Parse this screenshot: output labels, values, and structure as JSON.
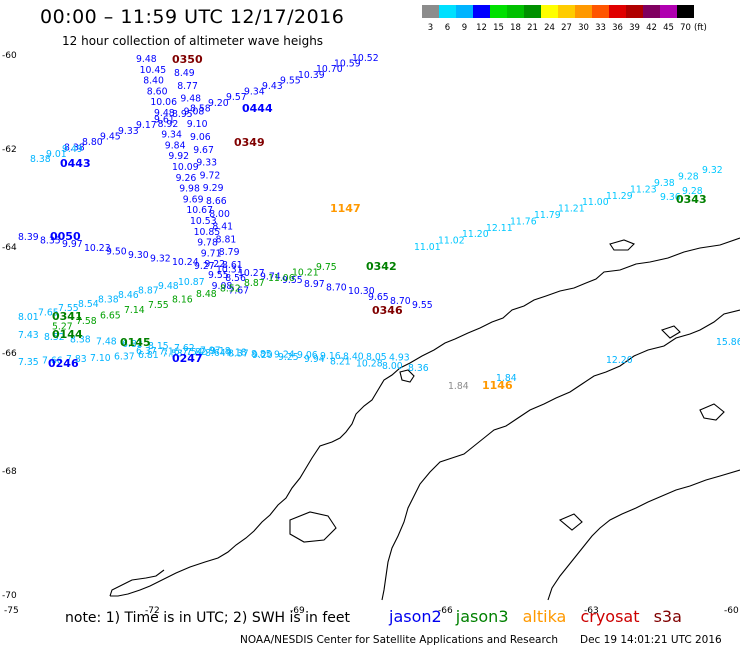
{
  "header": {
    "title": "00:00 – 11:59 UTC 12/17/2016",
    "subtitle": "12 hour collection of altimeter wave heighs"
  },
  "scale": {
    "labels": [
      "3",
      "6",
      "9",
      "12",
      "15",
      "18",
      "21",
      "24",
      "27",
      "30",
      "33",
      "36",
      "39",
      "42",
      "45",
      "70"
    ],
    "colors": [
      "#8c8c8c",
      "#00e0ff",
      "#00b4ff",
      "#0000ff",
      "#00e000",
      "#00c000",
      "#009000",
      "#ffff00",
      "#ffcc00",
      "#ff9900",
      "#ff5500",
      "#e00000",
      "#b00000",
      "#800060",
      "#b000b0",
      "#000000"
    ],
    "unit": "(ft)"
  },
  "axes": {
    "lat_labels": [
      "-60",
      "-62",
      "-64",
      "-66",
      "-68",
      "-70"
    ],
    "lon_labels": [
      "-75",
      "-72",
      "-69",
      "-66",
      "-63",
      "-60"
    ]
  },
  "satellites": {
    "jason2": {
      "label": "jason2",
      "color": "#0000ee"
    },
    "jason3": {
      "label": "jason3",
      "color": "#008000"
    },
    "altika": {
      "label": "altika",
      "color": "#ff9900"
    },
    "cryosat": {
      "label": "cryosat",
      "color": "#cc0000"
    },
    "s3a": {
      "label": "s3a",
      "color": "#800000"
    }
  },
  "tracks": [
    {
      "id": "t0350",
      "tag": "0350",
      "tag_color": "#800000",
      "color_hex": "#0000ff",
      "values": [
        "9.48",
        "10.45",
        "8.40",
        "8.60",
        "10.06",
        "9.48",
        "8.92",
        "9.34",
        "9.84",
        "9.92",
        "10.09",
        "9.26",
        "9.98",
        "9.69",
        "10.67",
        "10.53",
        "10.85",
        "9.78",
        "9.71",
        "9.22",
        "9.55",
        "9.08"
      ]
    },
    {
      "id": "t0349",
      "tag": "0349",
      "tag_color": "#800000",
      "color_hex": "#0000ff",
      "values": [
        "8.49",
        "8.77",
        "9.48",
        "9.08",
        "9.10",
        "9.06",
        "9.67",
        "9.33",
        "9.72",
        "9.29",
        "8.66",
        "8.00",
        "8.41",
        "8.81",
        "8.79",
        "8.61",
        "8.56",
        "7.67"
      ]
    },
    {
      "id": "t0444",
      "tag": "0444",
      "tag_color": "#0000ff",
      "color_hex": "#0000ff",
      "values": [
        "10.52",
        "10.59",
        "10.70",
        "10.39",
        "9.55",
        "9.43",
        "9.34",
        "9.57",
        "9.20",
        "8.58",
        "8.95",
        "9.61",
        "9.17",
        "9.33",
        "9.45",
        "8.80",
        "8.38"
      ]
    },
    {
      "id": "t0050",
      "tag": "0050",
      "tag_color": "#0000ff",
      "color_hex": "#0000ff",
      "values": [
        "8.39",
        "8.35",
        "9.97",
        "10.23",
        "9.50",
        "9.30",
        "9.32",
        "10.24",
        "9.27",
        "10.31",
        "10.27",
        "9.74",
        "9.55",
        "8.97",
        "8.70",
        "10.30"
      ]
    },
    {
      "id": "t1147",
      "tag": "1147",
      "tag_color": "#ff9900",
      "color_hex": "#00c8ff",
      "values": [
        "11.01",
        "11.02",
        "11.20",
        "12.11",
        "11.76",
        "11.79",
        "11.21",
        "11.00",
        "11.29",
        "11.23",
        "9.38",
        "9.28",
        "9.32"
      ]
    },
    {
      "id": "t0342",
      "tag": "0342",
      "tag_color": "#008000",
      "color_hex": "#00a000",
      "values": [
        "9.75",
        "10.21",
        "11.06",
        "8.87",
        "8.52",
        "8.48",
        "8.16",
        "7.55",
        "7.14",
        "6.65",
        "7.58",
        "5.27"
      ]
    },
    {
      "id": "t0341",
      "tag": "0341",
      "tag_color": "#008000",
      "color_hex": "#00b4ff",
      "values": [
        "8.01",
        "7.65",
        "7.55",
        "8.54",
        "8.38",
        "8.46",
        "8.87",
        "9.48",
        "10.87"
      ]
    },
    {
      "id": "t0144",
      "tag": "0144",
      "tag_color": "#008000",
      "color_hex": "#00b4ff",
      "values": [
        "7.43",
        "8.52",
        "8.38",
        "7.48",
        "6.82",
        "8.15",
        "7.62",
        "7.97",
        "9.18",
        "9.20",
        "9.25",
        "9.94",
        "8.21",
        "10.28",
        "8.00",
        "8.36"
      ]
    },
    {
      "id": "t0145",
      "tag": "0145",
      "tag_color": "#008000",
      "color_hex": "#00b4ff",
      "values": [
        "6.37",
        "7.16",
        "7.54",
        "8.64",
        "8.37",
        "8.85",
        "9.24",
        "9.06",
        "9.16",
        "8.40",
        "8.05",
        "4.93"
      ]
    },
    {
      "id": "t0246",
      "tag": "0246",
      "tag_color": "#0000ff",
      "color_hex": "#00b4ff",
      "values": [
        "7.35",
        "7.66",
        "7.83",
        "7.10",
        "6.37",
        "6.81",
        "7.53",
        "7.82",
        "9.18"
      ]
    },
    {
      "id": "t0346",
      "tag": "0346",
      "tag_color": "#800000",
      "color_hex": "#0000ff",
      "values": [
        "9.65",
        "8.70",
        "9.55"
      ]
    },
    {
      "id": "t0443",
      "tag": "0443",
      "tag_color": "#0000ff",
      "color_hex": "#00b4ff",
      "values": [
        "8.38",
        "9.01",
        "9.49"
      ]
    },
    {
      "id": "t0247",
      "tag": "0247",
      "tag_color": "#0000ff",
      "color_hex": "#00b4ff",
      "values": [
        "15.86",
        "12.20",
        "1.84"
      ]
    },
    {
      "id": "t0343",
      "tag": "0343",
      "tag_color": "#008000",
      "color_hex": "#00c8ff",
      "values": [
        "9.36",
        "9.28"
      ]
    },
    {
      "id": "t1146",
      "tag": "1146",
      "tag_color": "#ff9900",
      "color_hex": "#8c8c8c",
      "values": [
        "1.84"
      ]
    }
  ],
  "footer": {
    "note": "note: 1) Time is in UTC; 2) SWH is in feet",
    "credit": "NOAA/NESDIS Center for Satellite Applications and Research",
    "stamp": "Dec 19 14:01:21 UTC 2016"
  }
}
